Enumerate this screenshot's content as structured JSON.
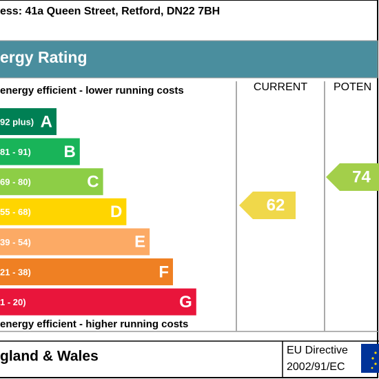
{
  "chart_data": {
    "type": "epc",
    "address": "ess: 41a Queen Street, Retford, DN22 7BH",
    "title": "ergy Rating",
    "top_note": "energy efficient - lower running costs",
    "bottom_note": "energy efficient - higher running costs",
    "columns": [
      "CURRENT",
      "POTEN"
    ],
    "bands": [
      {
        "range": "92 plus)",
        "letter": "A",
        "color": "#008054"
      },
      {
        "range": "81 - 91)",
        "letter": "B",
        "color": "#19b459"
      },
      {
        "range": "69 - 80)",
        "letter": "C",
        "color": "#8dce46"
      },
      {
        "range": "55 - 68)",
        "letter": "D",
        "color": "#ffd500"
      },
      {
        "range": "39 - 54)",
        "letter": "E",
        "color": "#fcaa65"
      },
      {
        "range": "21 - 38)",
        "letter": "F",
        "color": "#ef8023"
      },
      {
        "range": "1 - 20)",
        "letter": "G",
        "color": "#e9153b"
      }
    ],
    "current": {
      "value": 62,
      "color": "#f0d84a"
    },
    "potential": {
      "value": 74,
      "color": "#a3cf4a"
    },
    "footer": {
      "region": "gland & Wales",
      "directive": "EU Directive",
      "directive_code": "2002/91/EC"
    }
  }
}
